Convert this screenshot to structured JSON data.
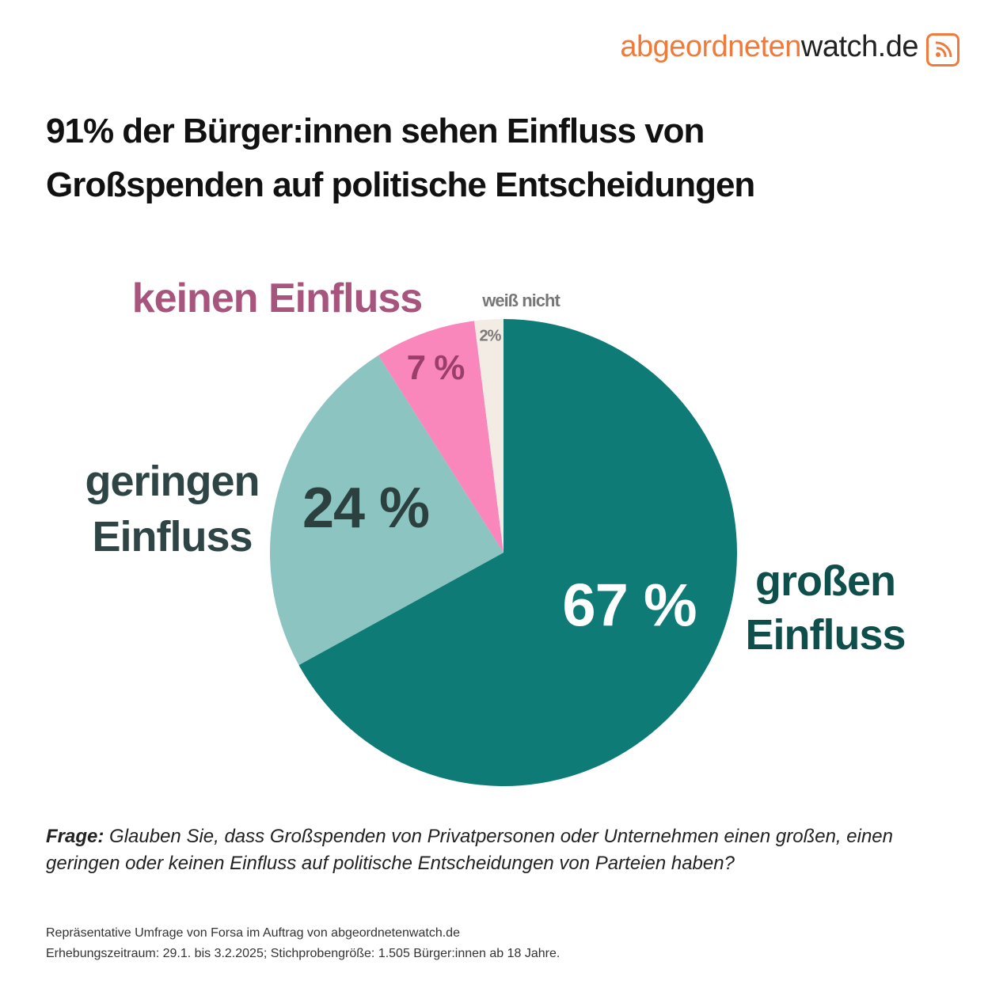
{
  "logo": [
    "abgeordneten",
    "watch.de"
  ],
  "chart_data": {
    "type": "pie",
    "title": "91% der Bürger:innen sehen Einfluss von Großspenden auf politische Entscheidungen",
    "categories": [
      "großen Einfluss",
      "geringen Einfluss",
      "keinen Einfluss",
      "weiß nicht"
    ],
    "values": [
      67,
      24,
      7,
      2
    ],
    "value_labels": [
      "67 %",
      "24 %",
      "7 %",
      "2%"
    ],
    "colors": [
      "#0f7b77",
      "#8bc4c1",
      "#f987bb",
      "#f2ece4"
    ]
  },
  "question_label": "Frage:",
  "question": "Glauben Sie, dass Großspenden von Privatpersonen oder Unternehmen einen großen, einen geringen oder keinen Einfluss auf politische Entscheidungen von Parteien haben?",
  "notes": [
    "Repräsentative Umfrage von Forsa im Auftrag von abgeordnetenwatch.de",
    "Erhebungszeitraum: 29.1. bis 3.2.2025; Stichprobengröße: 1.505 Bürger:innen ab 18 Jahre."
  ]
}
